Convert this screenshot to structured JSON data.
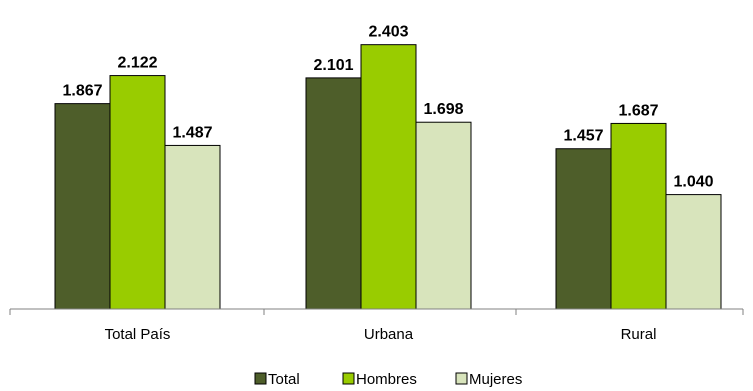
{
  "chart_data": {
    "type": "bar",
    "categories": [
      "Total País",
      "Urbana",
      "Rural"
    ],
    "series": [
      {
        "name": "Total",
        "color": "#4e5e2a",
        "values": [
          1.867,
          2.101,
          1.457
        ],
        "labels": [
          "1.867",
          "2.101",
          "1.457"
        ]
      },
      {
        "name": "Hombres",
        "color": "#99cc00",
        "values": [
          2.122,
          2.403,
          1.687
        ],
        "labels": [
          "2.122",
          "2.403",
          "1.687"
        ]
      },
      {
        "name": "Mujeres",
        "color": "#d8e4bc",
        "values": [
          1.487,
          1.698,
          1.04
        ],
        "labels": [
          "1.487",
          "1.698",
          "1.040"
        ]
      }
    ],
    "ylim": [
      0,
      2.5
    ],
    "grid": false,
    "legend_position": "bottom"
  }
}
